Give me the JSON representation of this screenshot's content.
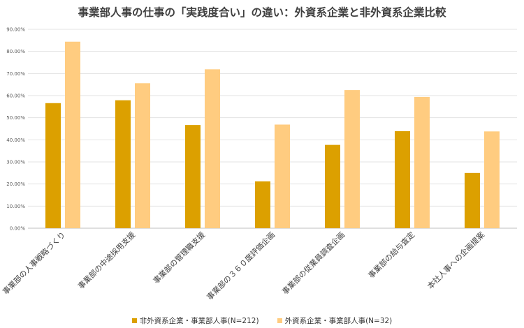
{
  "chart_data": {
    "type": "bar",
    "title": "事業部人事の仕事の「実践度合い」の違い：外資系企業と非外資系企業比較",
    "categories": [
      "事業部の人事戦略づくり",
      "事業部の中途採用支援",
      "事業部の管理職支援",
      "事業部の３６０度評価企画",
      "事業部の従業員調査企画",
      "事業部の給与査定",
      "本社人事への企画提案"
    ],
    "series": [
      {
        "name": "非外資系企業・事業部人事(N=212)",
        "color": "#DCA000",
        "values": [
          56.6,
          57.9,
          46.7,
          21.2,
          37.7,
          43.9,
          25.0
        ]
      },
      {
        "name": "外資系企業・事業部人事(N=32)",
        "color": "#FFCC80",
        "values": [
          84.4,
          65.6,
          71.9,
          46.9,
          62.5,
          59.4,
          43.8
        ]
      }
    ],
    "ylim": [
      0,
      90
    ],
    "yticks": [
      "0.00%",
      "10.00%",
      "20.00%",
      "30.00%",
      "40.00%",
      "50.00%",
      "60.00%",
      "70.00%",
      "80.00%",
      "90.00%"
    ],
    "grid": true,
    "legend_position": "bottom"
  }
}
